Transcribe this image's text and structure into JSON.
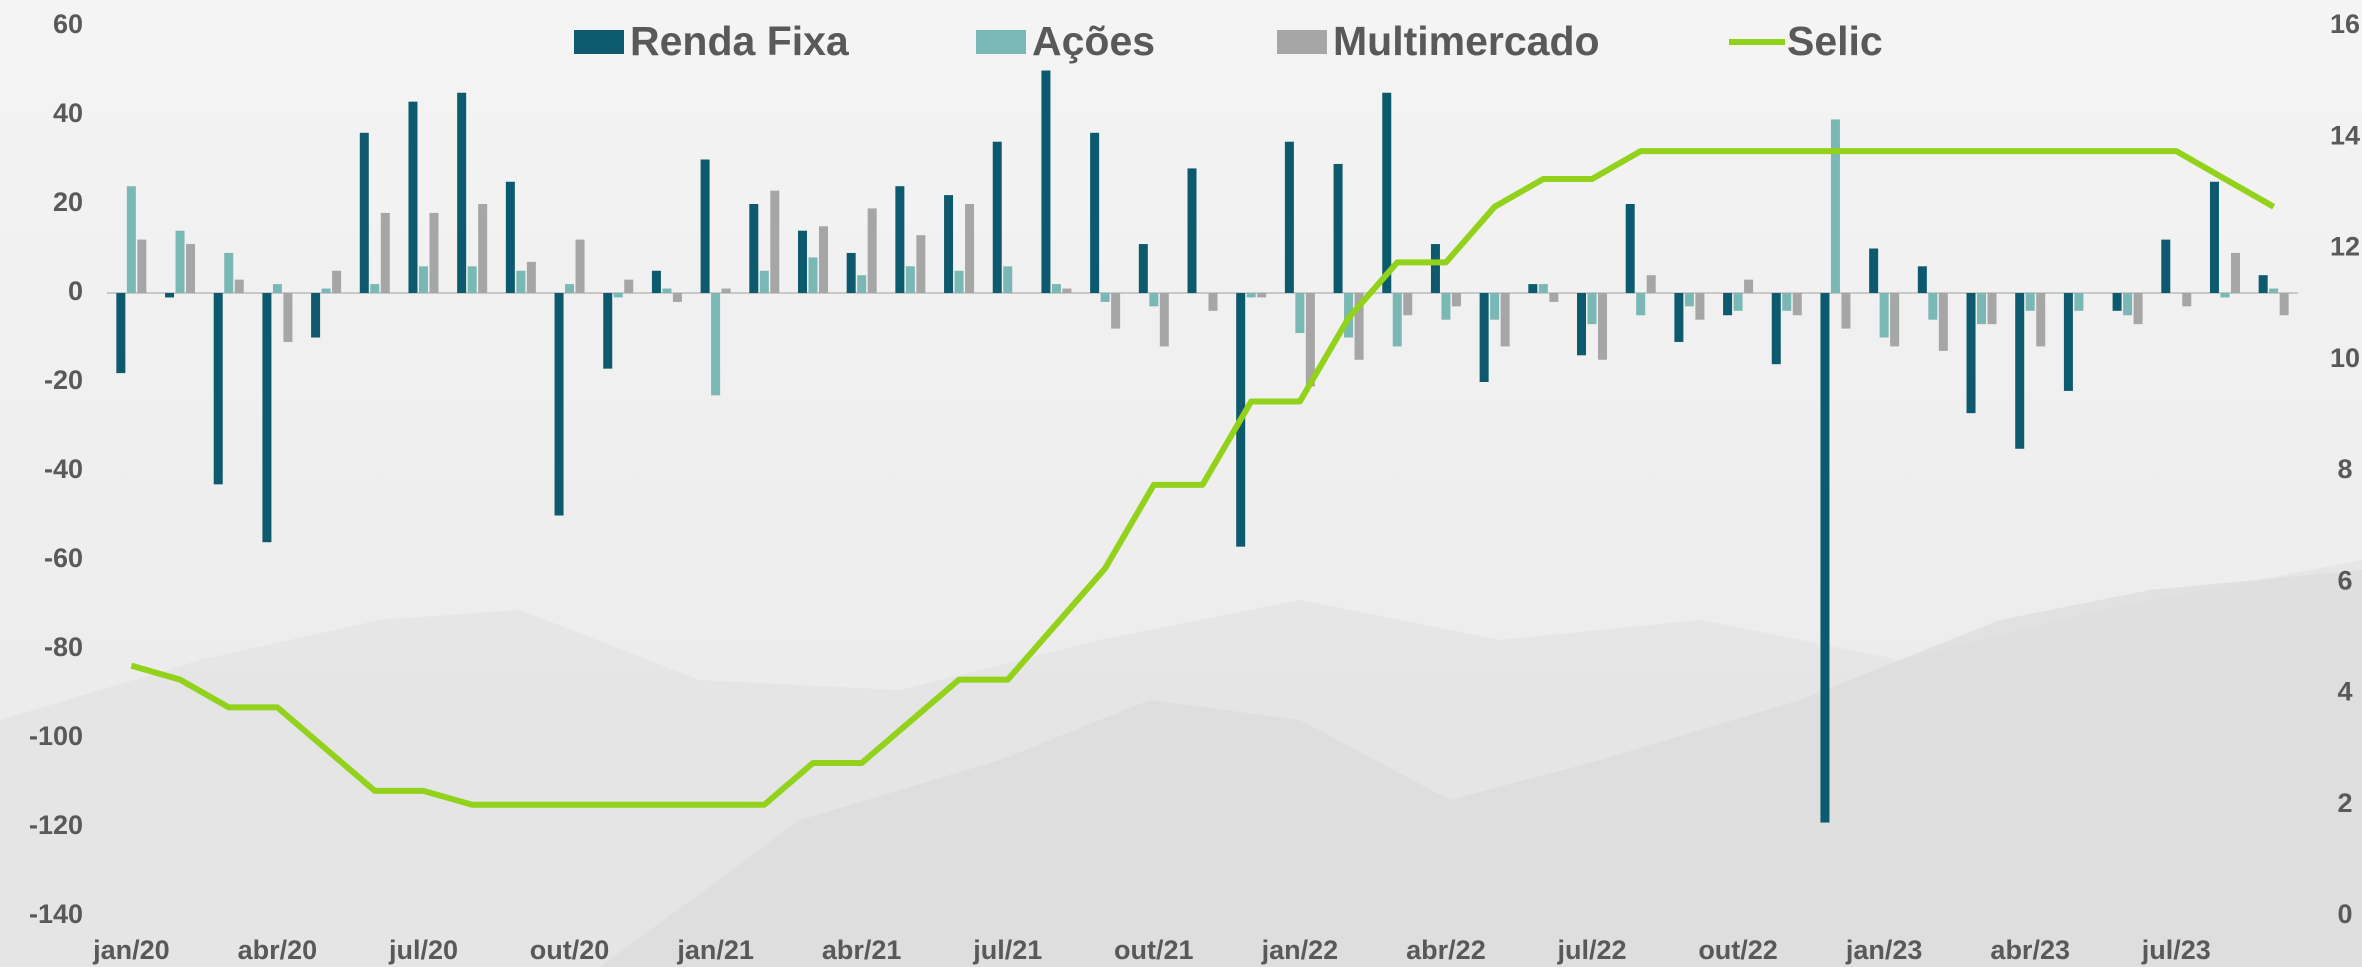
{
  "chart_data": {
    "type": "bar",
    "categories": [
      "jan/20",
      null,
      null,
      "abr/20",
      null,
      null,
      "jul/20",
      null,
      null,
      "out/20",
      null,
      null,
      "jan/21",
      null,
      null,
      "abr/21",
      null,
      null,
      "jul/21",
      null,
      null,
      "out/21",
      null,
      null,
      "jan/22",
      null,
      null,
      "abr/22",
      null,
      null,
      "jul/22",
      null,
      null,
      "out/22",
      null,
      null,
      "jan/23",
      null,
      null,
      "abr/23",
      null,
      null,
      "jul/23",
      null,
      null
    ],
    "ylim": [
      -140,
      60
    ],
    "yticks": [
      -140,
      -120,
      -100,
      -80,
      -60,
      -40,
      -20,
      0,
      20,
      40,
      60
    ],
    "y2lim": [
      0,
      16
    ],
    "y2ticks": [
      0,
      2,
      4,
      6,
      8,
      10,
      12,
      14,
      16
    ],
    "legend": "top",
    "series": [
      {
        "name": "Renda Fixa",
        "type": "bar",
        "color": "#0d5a6e",
        "values": [
          -18,
          -1,
          -43,
          -56,
          -10,
          36,
          43,
          45,
          25,
          -50,
          -17,
          5,
          30,
          20,
          14,
          9,
          24,
          22,
          34,
          50,
          36,
          11,
          28,
          -57,
          34,
          29,
          45,
          11,
          -20,
          2,
          -14,
          20,
          -11,
          -5,
          -16,
          -119,
          10,
          6,
          -27,
          -35,
          -22,
          -4,
          12,
          25,
          4
        ]
      },
      {
        "name": "Ações",
        "type": "bar",
        "color": "#7ab8b6",
        "values": [
          24,
          14,
          9,
          2,
          1,
          2,
          6,
          6,
          5,
          2,
          -1,
          1,
          -23,
          5,
          8,
          4,
          6,
          5,
          6,
          2,
          -2,
          -3,
          0,
          -1,
          -9,
          -10,
          -12,
          -6,
          -6,
          2,
          -7,
          -5,
          -3,
          -4,
          -4,
          39,
          -10,
          -6,
          -7,
          -4,
          -4,
          -5,
          0,
          -1,
          1
        ]
      },
      {
        "name": "Multimercado",
        "type": "bar",
        "color": "#a6a6a6",
        "values": [
          12,
          11,
          3,
          -11,
          5,
          18,
          18,
          20,
          7,
          12,
          3,
          -2,
          1,
          23,
          15,
          19,
          13,
          20,
          0,
          1,
          -8,
          -12,
          -4,
          -1,
          -21,
          -15,
          -5,
          -3,
          -12,
          -2,
          -15,
          4,
          -6,
          3,
          -5,
          -8,
          -12,
          -13,
          -7,
          -12,
          0,
          -7,
          -3,
          9,
          -5
        ]
      },
      {
        "name": "Selic",
        "type": "line",
        "axis": "y2",
        "color": "#92d21a",
        "values": [
          4.5,
          4.25,
          3.75,
          3.75,
          3.0,
          2.25,
          2.25,
          2.0,
          2.0,
          2.0,
          2.0,
          2.0,
          2.0,
          2.0,
          2.75,
          2.75,
          3.5,
          4.25,
          4.25,
          5.25,
          6.25,
          7.75,
          7.75,
          9.25,
          9.25,
          10.75,
          11.75,
          11.75,
          12.75,
          13.25,
          13.25,
          13.75,
          13.75,
          13.75,
          13.75,
          13.75,
          13.75,
          13.75,
          13.75,
          13.75,
          13.75,
          13.75,
          13.75,
          13.25,
          12.75
        ]
      }
    ]
  }
}
